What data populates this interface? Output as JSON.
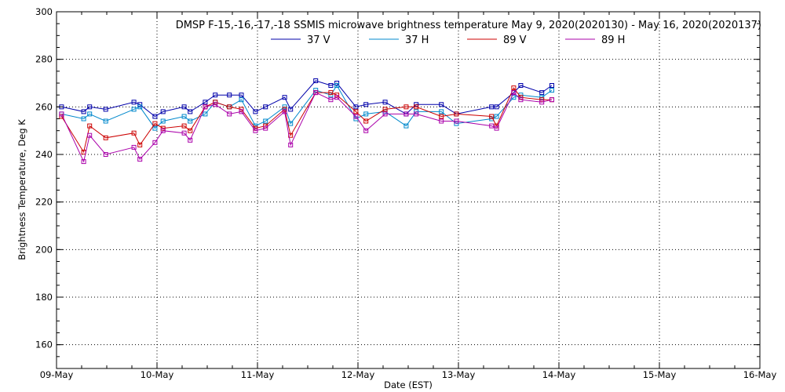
{
  "chart_data": {
    "type": "line",
    "title": "DMSP F-15,-16,-17,-18 SSMIS microwave brightness temperature May  9, 2020(2020130) - May 16, 2020(2020137)",
    "xlabel": "Date (EST)",
    "ylabel": "Brightness Temperature, Deg K",
    "xlim": [
      0,
      7
    ],
    "ylim": [
      150,
      300
    ],
    "yticks": [
      160,
      180,
      200,
      220,
      240,
      260,
      280,
      300
    ],
    "xtick_values": [
      0,
      1,
      2,
      3,
      4,
      5,
      6,
      7
    ],
    "xtick_labels": [
      "09-May",
      "10-May",
      "11-May",
      "12-May",
      "13-May",
      "14-May",
      "15-May",
      "16-May"
    ],
    "grid": true,
    "legend_position": "top-center",
    "x_units": "days since 09-May 00:00",
    "series": [
      {
        "name": "37 V",
        "color": "#0000aa",
        "x": [
          0.05,
          0.27,
          0.33,
          0.49,
          0.77,
          0.83,
          0.98,
          1.06,
          1.27,
          1.33,
          1.48,
          1.58,
          1.72,
          1.84,
          1.98,
          2.08,
          2.27,
          2.33,
          2.58,
          2.73,
          2.79,
          2.98,
          3.08,
          3.27,
          3.48,
          3.58,
          3.83,
          3.98,
          4.33,
          4.38,
          4.55,
          4.62,
          4.83,
          4.93
        ],
        "y": [
          260,
          258,
          260,
          259,
          262,
          261,
          256,
          258,
          260,
          258,
          262,
          265,
          265,
          265,
          258,
          260,
          264,
          259,
          271,
          269,
          270,
          260,
          261,
          262,
          257,
          261,
          261,
          257,
          260,
          260,
          266,
          269,
          266,
          269
        ]
      },
      {
        "name": "37 H",
        "color": "#0088cc",
        "x": [
          0.05,
          0.27,
          0.33,
          0.49,
          0.77,
          0.83,
          0.98,
          1.06,
          1.27,
          1.33,
          1.48,
          1.58,
          1.72,
          1.84,
          1.98,
          2.08,
          2.27,
          2.33,
          2.58,
          2.73,
          2.79,
          2.98,
          3.08,
          3.27,
          3.48,
          3.58,
          3.83,
          3.98,
          4.33,
          4.38,
          4.55,
          4.62,
          4.83,
          4.93
        ],
        "y": [
          257,
          255,
          257,
          254,
          259,
          260,
          251,
          254,
          256,
          254,
          257,
          262,
          260,
          263,
          252,
          254,
          260,
          253,
          267,
          265,
          269,
          255,
          257,
          258,
          252,
          258,
          258,
          253,
          255,
          256,
          264,
          265,
          264,
          267
        ]
      },
      {
        "name": "89 V",
        "color": "#cc0000",
        "x": [
          0.05,
          0.27,
          0.33,
          0.49,
          0.77,
          0.83,
          0.98,
          1.06,
          1.27,
          1.33,
          1.48,
          1.58,
          1.72,
          1.84,
          1.98,
          2.08,
          2.27,
          2.33,
          2.58,
          2.73,
          2.79,
          2.98,
          3.08,
          3.27,
          3.48,
          3.58,
          3.83,
          3.98,
          4.33,
          4.38,
          4.55,
          4.62,
          4.83,
          4.93
        ],
        "y": [
          256,
          241,
          252,
          247,
          249,
          244,
          253,
          251,
          252,
          250,
          260,
          262,
          260,
          259,
          251,
          252,
          259,
          248,
          266,
          266,
          265,
          258,
          254,
          259,
          260,
          260,
          256,
          257,
          256,
          252,
          268,
          264,
          263,
          263
        ]
      },
      {
        "name": "89 H",
        "color": "#aa00aa",
        "x": [
          0.05,
          0.27,
          0.33,
          0.49,
          0.77,
          0.83,
          0.98,
          1.06,
          1.27,
          1.33,
          1.48,
          1.58,
          1.72,
          1.84,
          1.98,
          2.08,
          2.27,
          2.33,
          2.58,
          2.73,
          2.79,
          2.98,
          3.08,
          3.27,
          3.48,
          3.58,
          3.83,
          3.98,
          4.33,
          4.38,
          4.55,
          4.62,
          4.83,
          4.93
        ],
        "y": [
          257,
          237,
          248,
          240,
          243,
          238,
          245,
          250,
          249,
          246,
          260,
          261,
          257,
          258,
          250,
          251,
          258,
          244,
          266,
          263,
          264,
          256,
          250,
          257,
          257,
          257,
          254,
          254,
          252,
          251,
          266,
          263,
          262,
          263
        ]
      }
    ]
  }
}
